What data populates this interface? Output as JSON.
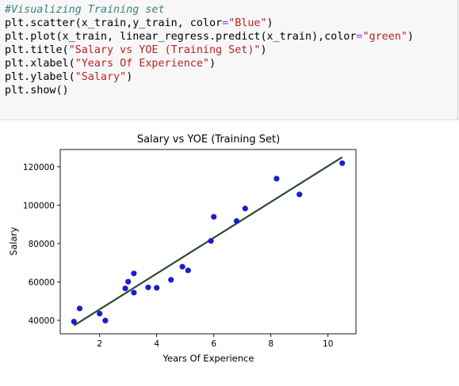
{
  "code_cell": {
    "lines": [
      [
        {
          "t": "#Visualizing Training set",
          "c": "cm"
        }
      ],
      [
        {
          "t": "plt.scatter(x_train,y_train, color",
          "c": ""
        },
        {
          "t": "=",
          "c": "op"
        },
        {
          "t": "\"Blue\"",
          "c": "st"
        },
        {
          "t": ")",
          "c": ""
        }
      ],
      [
        {
          "t": "plt.plot(x_train, linear_regress.predict(x_train),color",
          "c": ""
        },
        {
          "t": "=",
          "c": "op"
        },
        {
          "t": "\"green\"",
          "c": "st"
        },
        {
          "t": ")",
          "c": ""
        }
      ],
      [
        {
          "t": "plt.title(",
          "c": ""
        },
        {
          "t": "\"Salary vs YOE (Training Set)\"",
          "c": "st"
        },
        {
          "t": ")",
          "c": ""
        }
      ],
      [
        {
          "t": "plt.xlabel(",
          "c": ""
        },
        {
          "t": "\"Years Of Experience\"",
          "c": "st"
        },
        {
          "t": ")",
          "c": ""
        }
      ],
      [
        {
          "t": "plt.ylabel(",
          "c": ""
        },
        {
          "t": "\"Salary\"",
          "c": "st"
        },
        {
          "t": ")",
          "c": ""
        }
      ],
      [
        {
          "t": "plt.show()",
          "c": ""
        }
      ]
    ]
  },
  "chart_data": {
    "type": "scatter",
    "title": "Salary vs YOE (Training Set)",
    "xlabel": "Years Of Experience",
    "ylabel": "Salary",
    "xlim": [
      0.62,
      10.98
    ],
    "ylim": [
      33000,
      129000
    ],
    "xticks": [
      2,
      4,
      6,
      8,
      10
    ],
    "xtick_labels": [
      "2",
      "4",
      "6",
      "8",
      "10"
    ],
    "yticks": [
      40000,
      60000,
      80000,
      100000,
      120000
    ],
    "ytick_labels": [
      "40000",
      "60000",
      "80000",
      "100000",
      "120000"
    ],
    "grid": false,
    "colors": {
      "points": "#1a1ecc",
      "line": "#2e4a2e"
    },
    "points": [
      {
        "x": 1.1,
        "y": 39343
      },
      {
        "x": 1.3,
        "y": 46205
      },
      {
        "x": 2.0,
        "y": 43525
      },
      {
        "x": 2.2,
        "y": 39891
      },
      {
        "x": 2.9,
        "y": 56642
      },
      {
        "x": 3.0,
        "y": 60150
      },
      {
        "x": 3.2,
        "y": 54445
      },
      {
        "x": 3.2,
        "y": 64445
      },
      {
        "x": 3.7,
        "y": 57189
      },
      {
        "x": 4.0,
        "y": 56957
      },
      {
        "x": 4.5,
        "y": 61111
      },
      {
        "x": 4.9,
        "y": 67938
      },
      {
        "x": 5.1,
        "y": 66029
      },
      {
        "x": 5.9,
        "y": 81363
      },
      {
        "x": 6.0,
        "y": 93940
      },
      {
        "x": 6.8,
        "y": 91738
      },
      {
        "x": 7.1,
        "y": 98273
      },
      {
        "x": 8.2,
        "y": 113812
      },
      {
        "x": 9.0,
        "y": 105582
      },
      {
        "x": 10.5,
        "y": 121872
      }
    ],
    "line": [
      {
        "x": 1.1,
        "y": 37300
      },
      {
        "x": 10.5,
        "y": 125000
      }
    ]
  }
}
